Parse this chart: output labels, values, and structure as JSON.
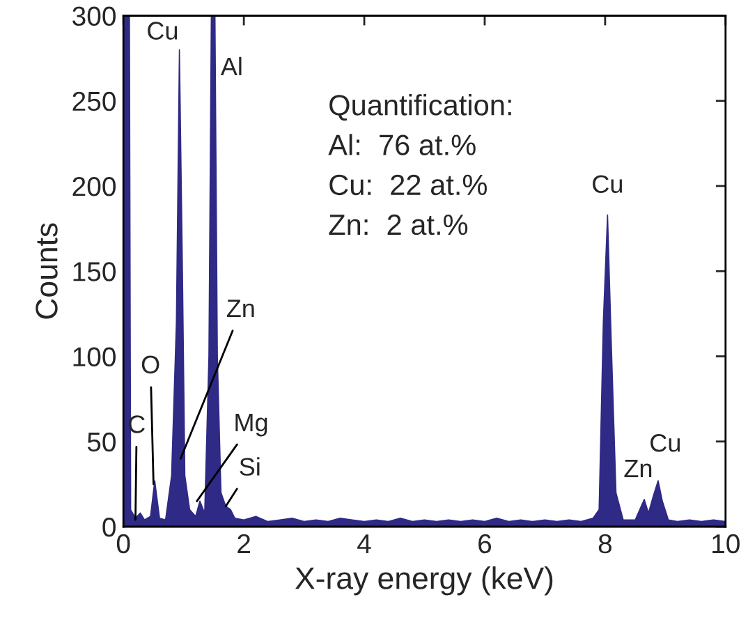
{
  "chart_data": {
    "type": "area",
    "xlabel": "X-ray energy (keV)",
    "ylabel": "Counts",
    "xlim": [
      0,
      10
    ],
    "ylim": [
      0,
      300
    ],
    "xticks": [
      0,
      2,
      4,
      6,
      8,
      10
    ],
    "yticks": [
      0,
      50,
      100,
      150,
      200,
      250,
      300
    ],
    "grid": false,
    "series": [
      {
        "color": "#2f2a85",
        "x": [
          0,
          0.1,
          0.12,
          0.2,
          0.28,
          0.35,
          0.45,
          0.52,
          0.6,
          0.7,
          0.8,
          0.88,
          0.93,
          0.98,
          1.02,
          1.1,
          1.2,
          1.27,
          1.35,
          1.42,
          1.46,
          1.52,
          1.56,
          1.62,
          1.7,
          1.78,
          1.85,
          2.0,
          2.2,
          2.4,
          2.6,
          2.8,
          3.0,
          3.2,
          3.4,
          3.6,
          3.8,
          4.0,
          4.2,
          4.4,
          4.6,
          4.8,
          5.0,
          5.2,
          5.4,
          5.6,
          5.8,
          6.0,
          6.2,
          6.4,
          6.6,
          6.8,
          7.0,
          7.2,
          7.4,
          7.6,
          7.8,
          7.9,
          7.97,
          8.04,
          8.1,
          8.18,
          8.3,
          8.5,
          8.6,
          8.65,
          8.72,
          8.8,
          8.88,
          8.95,
          9.05,
          9.2,
          9.4,
          9.6,
          9.8,
          10
        ],
        "values": [
          300,
          300,
          10,
          5,
          8,
          4,
          6,
          27,
          5,
          4,
          30,
          120,
          280,
          150,
          30,
          10,
          6,
          15,
          8,
          100,
          300,
          300,
          100,
          20,
          12,
          10,
          5,
          4,
          6,
          3,
          4,
          5,
          3,
          4,
          3,
          5,
          4,
          3,
          4,
          3,
          5,
          3,
          4,
          3,
          4,
          3,
          4,
          3,
          5,
          3,
          4,
          3,
          4,
          3,
          4,
          3,
          5,
          10,
          120,
          183,
          110,
          20,
          4,
          4,
          12,
          16,
          8,
          18,
          27,
          15,
          4,
          3,
          4,
          3,
          4,
          3
        ]
      }
    ],
    "annotations": [
      {
        "text": "Cu",
        "x": 0.93,
        "y": 280
      },
      {
        "text": "Al",
        "x": 1.52,
        "y": 300
      },
      {
        "text": "C",
        "x": 0.2,
        "y": 4
      },
      {
        "text": "O",
        "x": 0.5,
        "y": 25
      },
      {
        "text": "Zn",
        "x": 0.95,
        "y": 40
      },
      {
        "text": "Mg",
        "x": 1.22,
        "y": 15
      },
      {
        "text": "Si",
        "x": 1.7,
        "y": 12
      },
      {
        "text": "Cu",
        "x": 8.04,
        "y": 183
      },
      {
        "text": "Zn",
        "x": 8.65,
        "y": 16
      },
      {
        "text": "Cu",
        "x": 8.88,
        "y": 27
      },
      "Quantification:",
      "Al:  76 at.%",
      "Cu:  22 at.%",
      "Zn:  2 at.%"
    ]
  }
}
